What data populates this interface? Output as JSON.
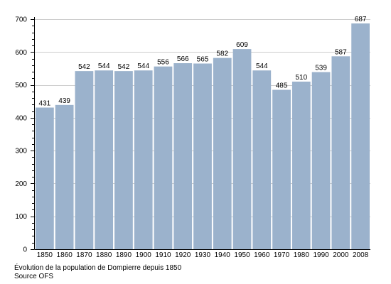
{
  "chart_data": {
    "type": "bar",
    "categories": [
      "1850",
      "1860",
      "1870",
      "1880",
      "1890",
      "1900",
      "1910",
      "1920",
      "1930",
      "1940",
      "1950",
      "1960",
      "1970",
      "1980",
      "1990",
      "2000",
      "2008"
    ],
    "values": [
      431,
      439,
      542,
      544,
      542,
      544,
      556,
      566,
      565,
      582,
      609,
      544,
      485,
      510,
      539,
      587,
      687
    ],
    "title": "",
    "xlabel": "",
    "ylabel": "",
    "ylim": [
      0,
      700
    ],
    "yticks": [
      0,
      100,
      200,
      300,
      400,
      500,
      600,
      700
    ],
    "grid": true,
    "bar_color": "#9bb2cc",
    "grid_color": "#cccccc",
    "axis_color": "#000000"
  },
  "caption": {
    "title": "Évolution de la population de Dompierre depuis 1850",
    "source": "Source OFS"
  }
}
